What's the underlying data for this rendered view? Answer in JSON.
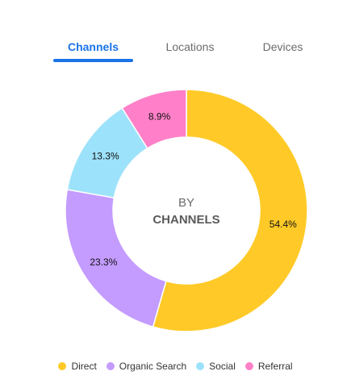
{
  "tabs": {
    "items": [
      {
        "label": "Channels",
        "active": true
      },
      {
        "label": "Locations",
        "active": false
      },
      {
        "label": "Devices",
        "active": false
      }
    ],
    "accent": "#1a73e8"
  },
  "center": {
    "line1": "BY",
    "line2": "CHANNELS"
  },
  "chart_data": {
    "type": "pie",
    "variant": "donut",
    "categories": [
      "Direct",
      "Organic Search",
      "Social",
      "Referral"
    ],
    "values": [
      54.4,
      23.3,
      13.3,
      8.9
    ],
    "labels": [
      "54.4%",
      "23.3%",
      "13.3%",
      "8.9%"
    ],
    "colors": [
      "#ffca28",
      "#c49bff",
      "#9de2fb",
      "#ff80c8"
    ],
    "legend": "bottom"
  }
}
